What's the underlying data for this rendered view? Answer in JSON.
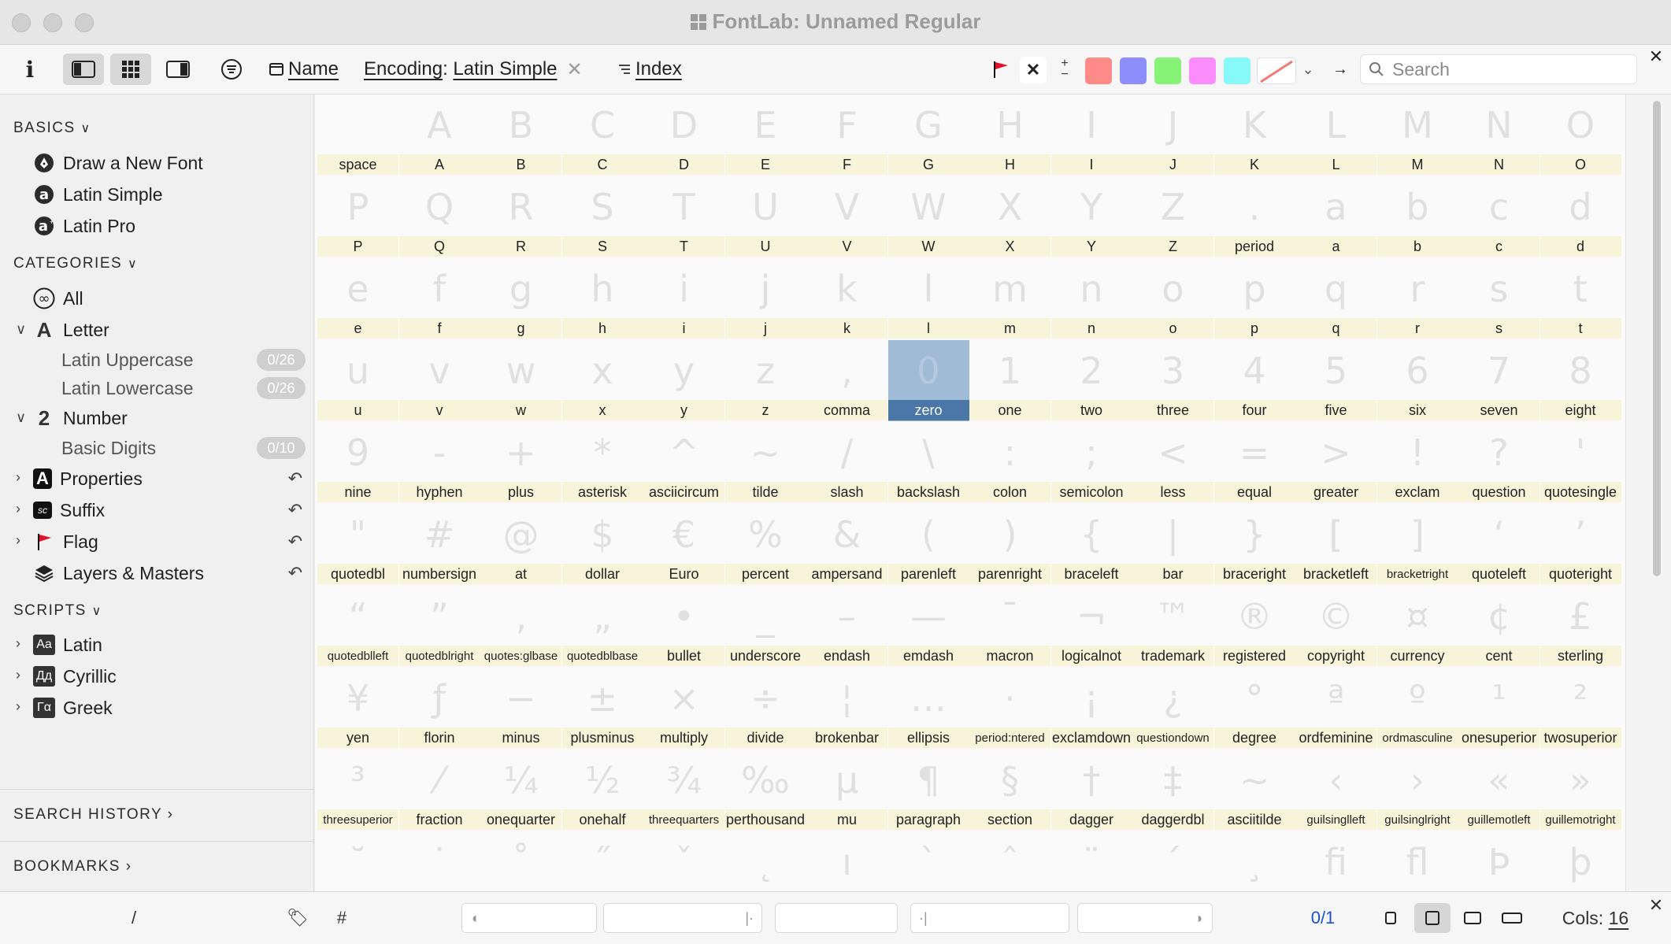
{
  "window": {
    "title": "FontLab: Unnamed Regular"
  },
  "toolbar": {
    "sort_name": "Name",
    "encoding_label": "Encoding",
    "encoding_value": "Latin Simple",
    "index_label": "Index",
    "search_placeholder": "Search",
    "swatch_colors": [
      "#ff8a8a",
      "#8d8dfb",
      "#86f276",
      "#fb8cfb",
      "#88f9f9"
    ]
  },
  "sidebar": {
    "basics_header": "BASICS",
    "basics": [
      {
        "label": "Draw a New Font",
        "icon": "pen-nib-icon"
      },
      {
        "label": "Latin Simple",
        "icon": "latin-a-icon"
      },
      {
        "label": "Latin Pro",
        "icon": "latin-a-plus-icon"
      }
    ],
    "categories_header": "CATEGORIES",
    "category_all": "All",
    "category_letter": "Letter",
    "letter_icon_glyph": "A",
    "sub_latin_upper": {
      "label": "Latin Uppercase",
      "count": "0/26"
    },
    "sub_latin_lower": {
      "label": "Latin Lowercase",
      "count": "0/26"
    },
    "category_number": "Number",
    "number_icon_glyph": "2",
    "sub_basic_digits": {
      "label": "Basic Digits",
      "count": "0/10"
    },
    "properties": "Properties",
    "properties_icon_glyph": "A",
    "suffix": "Suffix",
    "suffix_icon_glyph": "sc",
    "flag": "Flag",
    "layers": "Layers & Masters",
    "scripts_header": "SCRIPTS",
    "scripts": [
      {
        "label": "Latin",
        "glyph": "Aa"
      },
      {
        "label": "Cyrillic",
        "glyph": "Дд"
      },
      {
        "label": "Greek",
        "glyph": "Γα"
      }
    ],
    "search_history": "SEARCH HISTORY",
    "bookmarks": "BOOKMARKS"
  },
  "grid": {
    "selected": "zero",
    "glyphs": [
      {
        "name": "space",
        "char": ""
      },
      {
        "name": "A",
        "char": "A"
      },
      {
        "name": "B",
        "char": "B"
      },
      {
        "name": "C",
        "char": "C"
      },
      {
        "name": "D",
        "char": "D"
      },
      {
        "name": "E",
        "char": "E"
      },
      {
        "name": "F",
        "char": "F"
      },
      {
        "name": "G",
        "char": "G"
      },
      {
        "name": "H",
        "char": "H"
      },
      {
        "name": "I",
        "char": "I"
      },
      {
        "name": "J",
        "char": "J"
      },
      {
        "name": "K",
        "char": "K"
      },
      {
        "name": "L",
        "char": "L"
      },
      {
        "name": "M",
        "char": "M"
      },
      {
        "name": "N",
        "char": "N"
      },
      {
        "name": "O",
        "char": "O"
      },
      {
        "name": "P",
        "char": "P"
      },
      {
        "name": "Q",
        "char": "Q"
      },
      {
        "name": "R",
        "char": "R"
      },
      {
        "name": "S",
        "char": "S"
      },
      {
        "name": "T",
        "char": "T"
      },
      {
        "name": "U",
        "char": "U"
      },
      {
        "name": "V",
        "char": "V"
      },
      {
        "name": "W",
        "char": "W"
      },
      {
        "name": "X",
        "char": "X"
      },
      {
        "name": "Y",
        "char": "Y"
      },
      {
        "name": "Z",
        "char": "Z"
      },
      {
        "name": "period",
        "char": "."
      },
      {
        "name": "a",
        "char": "a"
      },
      {
        "name": "b",
        "char": "b"
      },
      {
        "name": "c",
        "char": "c"
      },
      {
        "name": "d",
        "char": "d"
      },
      {
        "name": "e",
        "char": "e"
      },
      {
        "name": "f",
        "char": "f"
      },
      {
        "name": "g",
        "char": "g"
      },
      {
        "name": "h",
        "char": "h"
      },
      {
        "name": "i",
        "char": "i"
      },
      {
        "name": "j",
        "char": "j"
      },
      {
        "name": "k",
        "char": "k"
      },
      {
        "name": "l",
        "char": "l"
      },
      {
        "name": "m",
        "char": "m"
      },
      {
        "name": "n",
        "char": "n"
      },
      {
        "name": "o",
        "char": "o"
      },
      {
        "name": "p",
        "char": "p"
      },
      {
        "name": "q",
        "char": "q"
      },
      {
        "name": "r",
        "char": "r"
      },
      {
        "name": "s",
        "char": "s"
      },
      {
        "name": "t",
        "char": "t"
      },
      {
        "name": "u",
        "char": "u"
      },
      {
        "name": "v",
        "char": "v"
      },
      {
        "name": "w",
        "char": "w"
      },
      {
        "name": "x",
        "char": "x"
      },
      {
        "name": "y",
        "char": "y"
      },
      {
        "name": "z",
        "char": "z"
      },
      {
        "name": "comma",
        "char": ","
      },
      {
        "name": "zero",
        "char": "0"
      },
      {
        "name": "one",
        "char": "1"
      },
      {
        "name": "two",
        "char": "2"
      },
      {
        "name": "three",
        "char": "3"
      },
      {
        "name": "four",
        "char": "4"
      },
      {
        "name": "five",
        "char": "5"
      },
      {
        "name": "six",
        "char": "6"
      },
      {
        "name": "seven",
        "char": "7"
      },
      {
        "name": "eight",
        "char": "8"
      },
      {
        "name": "nine",
        "char": "9"
      },
      {
        "name": "hyphen",
        "char": "-"
      },
      {
        "name": "plus",
        "char": "+"
      },
      {
        "name": "asterisk",
        "char": "*"
      },
      {
        "name": "asciicircum",
        "char": "^"
      },
      {
        "name": "tilde",
        "char": "~"
      },
      {
        "name": "slash",
        "char": "/"
      },
      {
        "name": "backslash",
        "char": "\\"
      },
      {
        "name": "colon",
        "char": ":"
      },
      {
        "name": "semicolon",
        "char": ";"
      },
      {
        "name": "less",
        "char": "<"
      },
      {
        "name": "equal",
        "char": "="
      },
      {
        "name": "greater",
        "char": ">"
      },
      {
        "name": "exclam",
        "char": "!"
      },
      {
        "name": "question",
        "char": "?"
      },
      {
        "name": "quotesingle",
        "char": "'"
      },
      {
        "name": "quotedbl",
        "char": "\""
      },
      {
        "name": "numbersign",
        "char": "#"
      },
      {
        "name": "at",
        "char": "@"
      },
      {
        "name": "dollar",
        "char": "$"
      },
      {
        "name": "Euro",
        "char": "€"
      },
      {
        "name": "percent",
        "char": "%"
      },
      {
        "name": "ampersand",
        "char": "&"
      },
      {
        "name": "parenleft",
        "char": "("
      },
      {
        "name": "parenright",
        "char": ")"
      },
      {
        "name": "braceleft",
        "char": "{"
      },
      {
        "name": "bar",
        "char": "|"
      },
      {
        "name": "braceright",
        "char": "}"
      },
      {
        "name": "bracketleft",
        "char": "["
      },
      {
        "name": "bracketright",
        "char": "]"
      },
      {
        "name": "quoteleft",
        "char": "‘"
      },
      {
        "name": "quoteright",
        "char": "’"
      },
      {
        "name": "quotedblleft",
        "char": "“"
      },
      {
        "name": "quotedblright",
        "char": "”"
      },
      {
        "name": "quotes:glbase",
        "char": "‚"
      },
      {
        "name": "quotedblbase",
        "char": "„"
      },
      {
        "name": "bullet",
        "char": "•"
      },
      {
        "name": "underscore",
        "char": "_"
      },
      {
        "name": "endash",
        "char": "–"
      },
      {
        "name": "emdash",
        "char": "—"
      },
      {
        "name": "macron",
        "char": "¯"
      },
      {
        "name": "logicalnot",
        "char": "¬"
      },
      {
        "name": "trademark",
        "char": "™"
      },
      {
        "name": "registered",
        "char": "®"
      },
      {
        "name": "copyright",
        "char": "©"
      },
      {
        "name": "currency",
        "char": "¤"
      },
      {
        "name": "cent",
        "char": "¢"
      },
      {
        "name": "sterling",
        "char": "£"
      },
      {
        "name": "yen",
        "char": "¥"
      },
      {
        "name": "florin",
        "char": "ƒ"
      },
      {
        "name": "minus",
        "char": "−"
      },
      {
        "name": "plusminus",
        "char": "±"
      },
      {
        "name": "multiply",
        "char": "×"
      },
      {
        "name": "divide",
        "char": "÷"
      },
      {
        "name": "brokenbar",
        "char": "¦"
      },
      {
        "name": "ellipsis",
        "char": "…"
      },
      {
        "name": "period:ntered",
        "char": "·"
      },
      {
        "name": "exclamdown",
        "char": "¡"
      },
      {
        "name": "questiondown",
        "char": "¿"
      },
      {
        "name": "degree",
        "char": "°"
      },
      {
        "name": "ordfeminine",
        "char": "ª"
      },
      {
        "name": "ordmasculine",
        "char": "º"
      },
      {
        "name": "onesuperior",
        "char": "¹"
      },
      {
        "name": "twosuperior",
        "char": "²"
      },
      {
        "name": "threesuperior",
        "char": "³"
      },
      {
        "name": "fraction",
        "char": "⁄"
      },
      {
        "name": "onequarter",
        "char": "¼"
      },
      {
        "name": "onehalf",
        "char": "½"
      },
      {
        "name": "threequarters",
        "char": "¾"
      },
      {
        "name": "perthousand",
        "char": "‰"
      },
      {
        "name": "mu",
        "char": "µ"
      },
      {
        "name": "paragraph",
        "char": "¶"
      },
      {
        "name": "section",
        "char": "§"
      },
      {
        "name": "dagger",
        "char": "†"
      },
      {
        "name": "daggerdbl",
        "char": "‡"
      },
      {
        "name": "asciitilde",
        "char": "~"
      },
      {
        "name": "guilsinglleft",
        "char": "‹"
      },
      {
        "name": "guilsinglright",
        "char": "›"
      },
      {
        "name": "guillemotleft",
        "char": "«"
      },
      {
        "name": "guillemotright",
        "char": "»"
      },
      {
        "name": "",
        "char": "˘"
      },
      {
        "name": "",
        "char": "˙"
      },
      {
        "name": "",
        "char": "˚"
      },
      {
        "name": "",
        "char": "˝"
      },
      {
        "name": "",
        "char": "ˇ"
      },
      {
        "name": "",
        "char": "˛"
      },
      {
        "name": "",
        "char": "ı"
      },
      {
        "name": "",
        "char": "`"
      },
      {
        "name": "",
        "char": "ˆ"
      },
      {
        "name": "",
        "char": "¨"
      },
      {
        "name": "",
        "char": "´"
      },
      {
        "name": "",
        "char": "¸"
      },
      {
        "name": "",
        "char": "ﬁ"
      },
      {
        "name": "",
        "char": "ﬂ"
      },
      {
        "name": "",
        "char": "Þ"
      },
      {
        "name": "",
        "char": "þ"
      }
    ]
  },
  "statusbar": {
    "slash": "/",
    "hash": "#",
    "count": "0/1",
    "cols_label": "Cols:",
    "cols_value": "16"
  }
}
